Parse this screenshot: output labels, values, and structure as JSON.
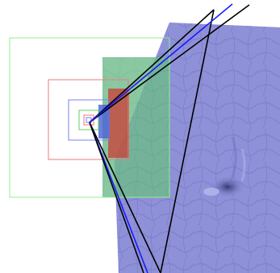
{
  "colors": {
    "background": "#ffffff",
    "terrain_fill": "#8e90d8",
    "terrain_shadow": "#6f72c0",
    "terrain_highlight": "#b6b8ec",
    "green_panel": "#5fcf6a",
    "red_panel": "#c8453c",
    "blue_panel": "#4a5fd6",
    "outline_green": "#8ff08f",
    "outline_red": "#f07a7a",
    "outline_blue": "#7a7ff0",
    "outline_small_green": "#5fd05f",
    "line_black": "#000000",
    "line_blue": "#1a1aff"
  },
  "layers": [
    {
      "name": "terrain-surface",
      "color_key": "terrain_fill"
    },
    {
      "name": "green-translucent-panel",
      "color_key": "green_panel"
    },
    {
      "name": "red-translucent-panel",
      "color_key": "red_panel"
    },
    {
      "name": "blue-translucent-panel",
      "color_key": "blue_panel"
    },
    {
      "name": "nested-outline-boxes",
      "color_key": "outline_green"
    },
    {
      "name": "view-frustum-lines",
      "color_key": "line_black"
    }
  ]
}
